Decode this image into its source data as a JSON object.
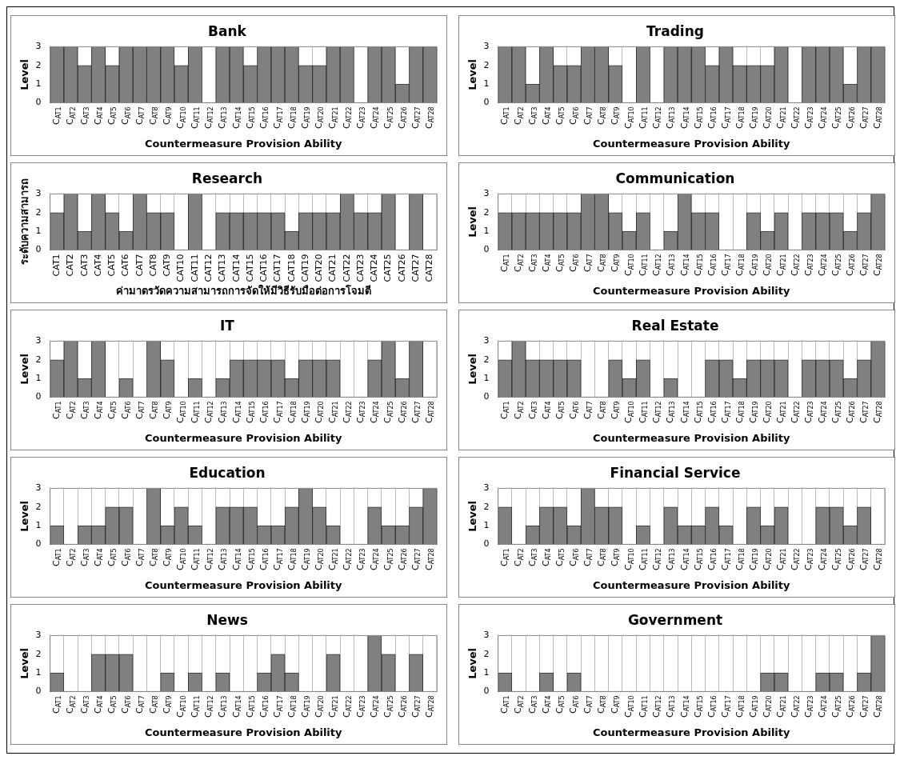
{
  "chart_data": [
    {
      "type": "bar",
      "title": "Bank",
      "xlabel": "Countermeasure Provision Ability",
      "ylabel": "Level",
      "color": "#808080",
      "ylim": [
        0,
        3
      ],
      "yticks": [
        0,
        1,
        2,
        3
      ],
      "grid": "x",
      "categories": [
        "C$_{AT1}$",
        "C$_{AT2}$",
        "C$_{AT3}$",
        "C$_{AT4}$",
        "C$_{AT5}$",
        "C$_{AT6}$",
        "C$_{AT7}$",
        "C$_{AT8}$",
        "C$_{AT9}$",
        "C$_{AT10}$",
        "C$_{AT11}$",
        "C$_{AT12}$",
        "C$_{AT13}$",
        "C$_{AT14}$",
        "C$_{AT15}$",
        "C$_{AT16}$",
        "C$_{AT17}$",
        "C$_{AT18}$",
        "C$_{AT19}$",
        "C$_{AT20}$",
        "C$_{AT21}$",
        "C$_{AT22}$",
        "C$_{AT23}$",
        "C$_{AT24}$",
        "C$_{AT25}$",
        "C$_{AT26}$",
        "C$_{AT27}$",
        "C$_{AT28}$"
      ],
      "values": [
        3,
        3,
        2,
        3,
        2,
        3,
        3,
        3,
        3,
        2,
        3,
        0,
        3,
        3,
        2,
        3,
        3,
        3,
        2,
        2,
        3,
        3,
        0,
        3,
        3,
        1,
        3,
        3
      ]
    },
    {
      "type": "bar",
      "title": "Trading",
      "xlabel": "Countermeasure Provision Ability",
      "ylabel": "Level",
      "color": "#808080",
      "ylim": [
        0,
        3
      ],
      "yticks": [
        0,
        1,
        2,
        3
      ],
      "grid": "x",
      "categories": [
        "C$_{AT1}$",
        "C$_{AT2}$",
        "C$_{AT3}$",
        "C$_{AT4}$",
        "C$_{AT5}$",
        "C$_{AT6}$",
        "C$_{AT7}$",
        "C$_{AT8}$",
        "C$_{AT9}$",
        "C$_{AT10}$",
        "C$_{AT11}$",
        "C$_{AT12}$",
        "C$_{AT13}$",
        "C$_{AT14}$",
        "C$_{AT15}$",
        "C$_{AT16}$",
        "C$_{AT17}$",
        "C$_{AT18}$",
        "C$_{AT19}$",
        "C$_{AT20}$",
        "C$_{AT21}$",
        "C$_{AT22}$",
        "C$_{AT23}$",
        "C$_{AT24}$",
        "C$_{AT25}$",
        "C$_{AT26}$",
        "C$_{AT27}$",
        "C$_{AT28}$"
      ],
      "values": [
        3,
        3,
        1,
        3,
        2,
        2,
        3,
        3,
        2,
        0,
        3,
        0,
        3,
        3,
        3,
        2,
        3,
        2,
        2,
        2,
        3,
        0,
        3,
        3,
        3,
        1,
        3,
        3
      ]
    },
    {
      "type": "bar",
      "title": "Research",
      "xlabel": "ค่ามาตรวัดความสามารถการจัดให้มีวิธีรับมือต่อการโจมตี",
      "ylabel": "ระดับความสามารถ",
      "color": "#808080",
      "ylim": [
        0,
        3
      ],
      "yticks": [
        0,
        1,
        2,
        3
      ],
      "grid": "x",
      "categories": [
        "CAT1",
        "CAT2",
        "CAT3",
        "CAT4",
        "CAT5",
        "CAT6",
        "CAT7",
        "CAT8",
        "CAT9",
        "CAT10",
        "CAT11",
        "CAT12",
        "CAT13",
        "CAT14",
        "CAT15",
        "CAT16",
        "CAT17",
        "CAT18",
        "CAT19",
        "CAT20",
        "CAT21",
        "CAT22",
        "CAT23",
        "CAT24",
        "CAT25",
        "CAT26",
        "CAT27",
        "CAT28"
      ],
      "values": [
        2,
        3,
        1,
        3,
        2,
        1,
        3,
        2,
        2,
        0,
        3,
        0,
        2,
        2,
        2,
        2,
        2,
        1,
        2,
        2,
        2,
        3,
        2,
        2,
        3,
        0,
        3,
        0
      ]
    },
    {
      "type": "bar",
      "title": "Communication",
      "xlabel": "Countermeasure Provision Ability",
      "ylabel": "Level",
      "color": "#808080",
      "ylim": [
        0,
        3
      ],
      "yticks": [
        0,
        1,
        2,
        3
      ],
      "grid": "x",
      "categories": [
        "C$_{AT1}$",
        "C$_{AT2}$",
        "C$_{AT3}$",
        "C$_{AT4}$",
        "C$_{AT5}$",
        "C$_{AT6}$",
        "C$_{AT7}$",
        "C$_{AT8}$",
        "C$_{AT9}$",
        "C$_{AT10}$",
        "C$_{AT11}$",
        "C$_{AT12}$",
        "C$_{AT13}$",
        "C$_{AT14}$",
        "C$_{AT15}$",
        "C$_{AT16}$",
        "C$_{AT17}$",
        "C$_{AT18}$",
        "C$_{AT19}$",
        "C$_{AT20}$",
        "C$_{AT21}$",
        "C$_{AT22}$",
        "C$_{AT23}$",
        "C$_{AT24}$",
        "C$_{AT25}$",
        "C$_{AT26}$",
        "C$_{AT27}$",
        "C$_{AT28}$"
      ],
      "values": [
        2,
        2,
        2,
        2,
        2,
        2,
        3,
        3,
        2,
        1,
        2,
        0,
        1,
        3,
        2,
        2,
        0,
        0,
        2,
        1,
        2,
        0,
        2,
        2,
        2,
        1,
        2,
        3
      ]
    },
    {
      "type": "bar",
      "title": "IT",
      "xlabel": "Countermeasure Provision Ability",
      "ylabel": "Level",
      "color": "#808080",
      "ylim": [
        0,
        3
      ],
      "yticks": [
        0,
        1,
        2,
        3
      ],
      "grid": "x",
      "categories": [
        "C$_{AT1}$",
        "C$_{AT2}$",
        "C$_{AT3}$",
        "C$_{AT4}$",
        "C$_{AT5}$",
        "C$_{AT6}$",
        "C$_{AT7}$",
        "C$_{AT8}$",
        "C$_{AT9}$",
        "C$_{AT10}$",
        "C$_{AT11}$",
        "C$_{AT12}$",
        "C$_{AT13}$",
        "C$_{AT14}$",
        "C$_{AT15}$",
        "C$_{AT16}$",
        "C$_{AT17}$",
        "C$_{AT18}$",
        "C$_{AT19}$",
        "C$_{AT20}$",
        "C$_{AT21}$",
        "C$_{AT22}$",
        "C$_{AT23}$",
        "C$_{AT24}$",
        "C$_{AT25}$",
        "C$_{AT26}$",
        "C$_{AT27}$",
        "C$_{AT28}$"
      ],
      "values": [
        2,
        3,
        1,
        3,
        0,
        1,
        0,
        3,
        2,
        0,
        1,
        0,
        1,
        2,
        2,
        2,
        2,
        1,
        2,
        2,
        2,
        0,
        0,
        2,
        3,
        1,
        3,
        0
      ]
    },
    {
      "type": "bar",
      "title": "Real Estate",
      "xlabel": "Countermeasure Provision Ability",
      "ylabel": "Level",
      "color": "#808080",
      "ylim": [
        0,
        3
      ],
      "yticks": [
        0,
        1,
        2,
        3
      ],
      "grid": "x",
      "categories": [
        "C$_{AT1}$",
        "C$_{AT2}$",
        "C$_{AT3}$",
        "C$_{AT4}$",
        "C$_{AT5}$",
        "C$_{AT6}$",
        "C$_{AT7}$",
        "C$_{AT8}$",
        "C$_{AT9}$",
        "C$_{AT10}$",
        "C$_{AT11}$",
        "C$_{AT12}$",
        "C$_{AT13}$",
        "C$_{AT14}$",
        "C$_{AT15}$",
        "C$_{AT16}$",
        "C$_{AT17}$",
        "C$_{AT18}$",
        "C$_{AT19}$",
        "C$_{AT20}$",
        "C$_{AT21}$",
        "C$_{AT22}$",
        "C$_{AT23}$",
        "C$_{AT24}$",
        "C$_{AT25}$",
        "C$_{AT26}$",
        "C$_{AT27}$",
        "C$_{AT28}$"
      ],
      "values": [
        2,
        3,
        2,
        2,
        2,
        2,
        0,
        0,
        2,
        1,
        2,
        0,
        1,
        0,
        0,
        2,
        2,
        1,
        2,
        2,
        2,
        0,
        2,
        2,
        2,
        1,
        2,
        3
      ]
    },
    {
      "type": "bar",
      "title": "Education",
      "xlabel": "Countermeasure Provision Ability",
      "ylabel": "Level",
      "color": "#808080",
      "ylim": [
        0,
        3
      ],
      "yticks": [
        0,
        1,
        2,
        3
      ],
      "grid": "x",
      "categories": [
        "C$_{AT1}$",
        "C$_{AT2}$",
        "C$_{AT3}$",
        "C$_{AT4}$",
        "C$_{AT5}$",
        "C$_{AT6}$",
        "C$_{AT7}$",
        "C$_{AT8}$",
        "C$_{AT9}$",
        "C$_{AT10}$",
        "C$_{AT11}$",
        "C$_{AT12}$",
        "C$_{AT13}$",
        "C$_{AT14}$",
        "C$_{AT15}$",
        "C$_{AT16}$",
        "C$_{AT17}$",
        "C$_{AT18}$",
        "C$_{AT19}$",
        "C$_{AT20}$",
        "C$_{AT21}$",
        "C$_{AT22}$",
        "C$_{AT23}$",
        "C$_{AT24}$",
        "C$_{AT25}$",
        "C$_{AT26}$",
        "C$_{AT27}$",
        "C$_{AT28}$"
      ],
      "values": [
        1,
        0,
        1,
        1,
        2,
        2,
        0,
        3,
        1,
        2,
        1,
        0,
        2,
        2,
        2,
        1,
        1,
        2,
        3,
        2,
        1,
        0,
        0,
        2,
        1,
        1,
        2,
        3
      ]
    },
    {
      "type": "bar",
      "title": "Financial Service",
      "xlabel": "Countermeasure Provision Ability",
      "ylabel": "Level",
      "color": "#808080",
      "ylim": [
        0,
        3
      ],
      "yticks": [
        0,
        1,
        2,
        3
      ],
      "grid": "x",
      "categories": [
        "C$_{AT1}$",
        "C$_{AT2}$",
        "C$_{AT3}$",
        "C$_{AT4}$",
        "C$_{AT5}$",
        "C$_{AT6}$",
        "C$_{AT7}$",
        "C$_{AT8}$",
        "C$_{AT9}$",
        "C$_{AT10}$",
        "C$_{AT11}$",
        "C$_{AT12}$",
        "C$_{AT13}$",
        "C$_{AT14}$",
        "C$_{AT15}$",
        "C$_{AT16}$",
        "C$_{AT17}$",
        "C$_{AT18}$",
        "C$_{AT19}$",
        "C$_{AT20}$",
        "C$_{AT21}$",
        "C$_{AT22}$",
        "C$_{AT23}$",
        "C$_{AT24}$",
        "C$_{AT25}$",
        "C$_{AT26}$",
        "C$_{AT27}$",
        "C$_{AT28}$"
      ],
      "values": [
        2,
        0,
        1,
        2,
        2,
        1,
        3,
        2,
        2,
        0,
        1,
        0,
        2,
        1,
        1,
        2,
        1,
        0,
        2,
        1,
        2,
        0,
        0,
        2,
        2,
        1,
        2,
        0
      ]
    },
    {
      "type": "bar",
      "title": "News",
      "xlabel": "Countermeasure Provision Ability",
      "ylabel": "Level",
      "color": "#808080",
      "ylim": [
        0,
        3
      ],
      "yticks": [
        0,
        1,
        2,
        3
      ],
      "grid": "x",
      "categories": [
        "C$_{AT1}$",
        "C$_{AT2}$",
        "C$_{AT3}$",
        "C$_{AT4}$",
        "C$_{AT5}$",
        "C$_{AT6}$",
        "C$_{AT7}$",
        "C$_{AT8}$",
        "C$_{AT9}$",
        "C$_{AT10}$",
        "C$_{AT11}$",
        "C$_{AT12}$",
        "C$_{AT13}$",
        "C$_{AT14}$",
        "C$_{AT15}$",
        "C$_{AT16}$",
        "C$_{AT17}$",
        "C$_{AT18}$",
        "C$_{AT19}$",
        "C$_{AT20}$",
        "C$_{AT21}$",
        "C$_{AT22}$",
        "C$_{AT23}$",
        "C$_{AT24}$",
        "C$_{AT25}$",
        "C$_{AT26}$",
        "C$_{AT27}$",
        "C$_{AT28}$"
      ],
      "values": [
        1,
        0,
        0,
        2,
        2,
        2,
        0,
        0,
        1,
        0,
        1,
        0,
        1,
        0,
        0,
        1,
        2,
        1,
        0,
        0,
        2,
        0,
        0,
        3,
        2,
        0,
        2,
        0
      ]
    },
    {
      "type": "bar",
      "title": "Government",
      "xlabel": "Countermeasure Provision Ability",
      "ylabel": "Level",
      "color": "#808080",
      "ylim": [
        0,
        3
      ],
      "yticks": [
        0,
        1,
        2,
        3
      ],
      "grid": "x",
      "categories": [
        "C$_{AT1}$",
        "C$_{AT2}$",
        "C$_{AT3}$",
        "C$_{AT4}$",
        "C$_{AT5}$",
        "C$_{AT6}$",
        "C$_{AT7}$",
        "C$_{AT8}$",
        "C$_{AT9}$",
        "C$_{AT10}$",
        "C$_{AT11}$",
        "C$_{AT12}$",
        "C$_{AT13}$",
        "C$_{AT14}$",
        "C$_{AT15}$",
        "C$_{AT16}$",
        "C$_{AT17}$",
        "C$_{AT18}$",
        "C$_{AT19}$",
        "C$_{AT20}$",
        "C$_{AT21}$",
        "C$_{AT22}$",
        "C$_{AT23}$",
        "C$_{AT24}$",
        "C$_{AT25}$",
        "C$_{AT26}$",
        "C$_{AT27}$",
        "C$_{AT28}$"
      ],
      "values": [
        1,
        0,
        0,
        1,
        0,
        1,
        0,
        0,
        0,
        0,
        0,
        0,
        0,
        0,
        0,
        0,
        0,
        0,
        0,
        1,
        1,
        0,
        0,
        1,
        1,
        0,
        1,
        3
      ]
    }
  ]
}
